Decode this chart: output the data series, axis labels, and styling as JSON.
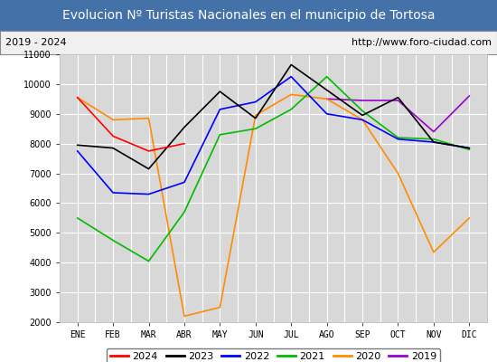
{
  "title": "Evolucion Nº Turistas Nacionales en el municipio de Tortosa",
  "subtitle_left": "2019 - 2024",
  "subtitle_right": "http://www.foro-ciudad.com",
  "months": [
    "ENE",
    "FEB",
    "MAR",
    "ABR",
    "MAY",
    "JUN",
    "JUL",
    "AGO",
    "SEP",
    "OCT",
    "NOV",
    "DIC"
  ],
  "ylim": [
    2000,
    11000
  ],
  "yticks": [
    2000,
    3000,
    4000,
    5000,
    6000,
    7000,
    8000,
    9000,
    10000,
    11000
  ],
  "series": {
    "2024": {
      "color": "#ff0000",
      "data": [
        9550,
        8250,
        7750,
        8000,
        null,
        null,
        null,
        null,
        null,
        null,
        null,
        null
      ]
    },
    "2023": {
      "color": "#000000",
      "data": [
        7950,
        7850,
        7150,
        8550,
        9750,
        8850,
        10650,
        9800,
        8950,
        9550,
        8050,
        7850
      ]
    },
    "2022": {
      "color": "#0000ff",
      "data": [
        7750,
        6350,
        6300,
        6700,
        9150,
        9400,
        10250,
        9000,
        8800,
        8150,
        8050,
        7850
      ]
    },
    "2021": {
      "color": "#00bb00",
      "data": [
        5500,
        4750,
        4050,
        5700,
        8300,
        8500,
        9150,
        10250,
        9100,
        8200,
        8150,
        7800
      ]
    },
    "2020": {
      "color": "#ff8c00",
      "data": [
        9550,
        8800,
        8850,
        2200,
        2500,
        8950,
        9650,
        9500,
        8800,
        7000,
        4350,
        5500
      ]
    },
    "2019": {
      "color": "#9900cc",
      "data": [
        null,
        null,
        null,
        null,
        null,
        null,
        null,
        9500,
        9450,
        9450,
        8400,
        9600
      ]
    }
  },
  "title_bg_color": "#4472a8",
  "title_text_color": "#ffffff",
  "subtitle_bg_color": "#f0f0f0",
  "subtitle_border_color": "#888888",
  "plot_bg_color": "#d8d8d8",
  "grid_color": "#ffffff",
  "title_fontsize": 10,
  "subtitle_fontsize": 8,
  "axis_fontsize": 7,
  "legend_fontsize": 8
}
